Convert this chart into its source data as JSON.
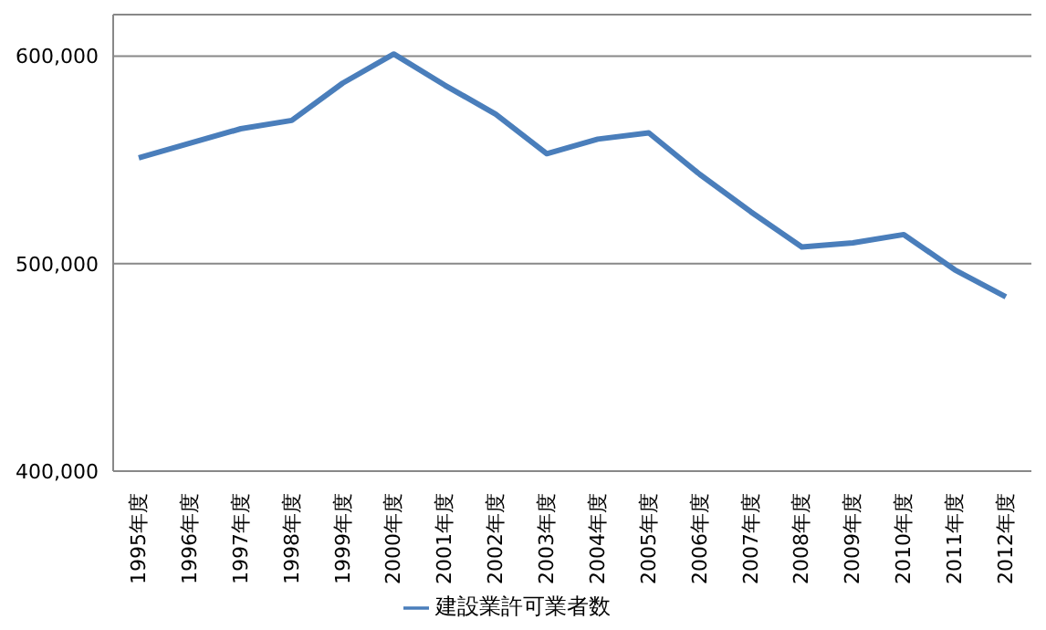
{
  "chart_data": {
    "type": "line",
    "categories": [
      "1995年度",
      "1996年度",
      "1997年度",
      "1998年度",
      "1999年度",
      "2000年度",
      "2001年度",
      "2002年度",
      "2003年度",
      "2004年度",
      "2005年度",
      "2006年度",
      "2007年度",
      "2008年度",
      "2009年度",
      "2010年度",
      "2011年度",
      "2012年度"
    ],
    "series": [
      {
        "name": "建設業許可業者数",
        "color": "#4a7ebb",
        "values": [
          551000,
          558000,
          565000,
          569000,
          587000,
          601000,
          586000,
          572000,
          553000,
          560000,
          563000,
          543000,
          525000,
          508000,
          510000,
          514000,
          497000,
          484000
        ]
      }
    ],
    "ylim": [
      400000,
      620000
    ],
    "yticks": [
      {
        "value": 400000,
        "label": "400,000"
      },
      {
        "value": 500000,
        "label": "500,000"
      },
      {
        "value": 600000,
        "label": "600,000"
      }
    ],
    "grid": "y",
    "legend": "bottom",
    "marker": "none",
    "line_style": "solid"
  }
}
